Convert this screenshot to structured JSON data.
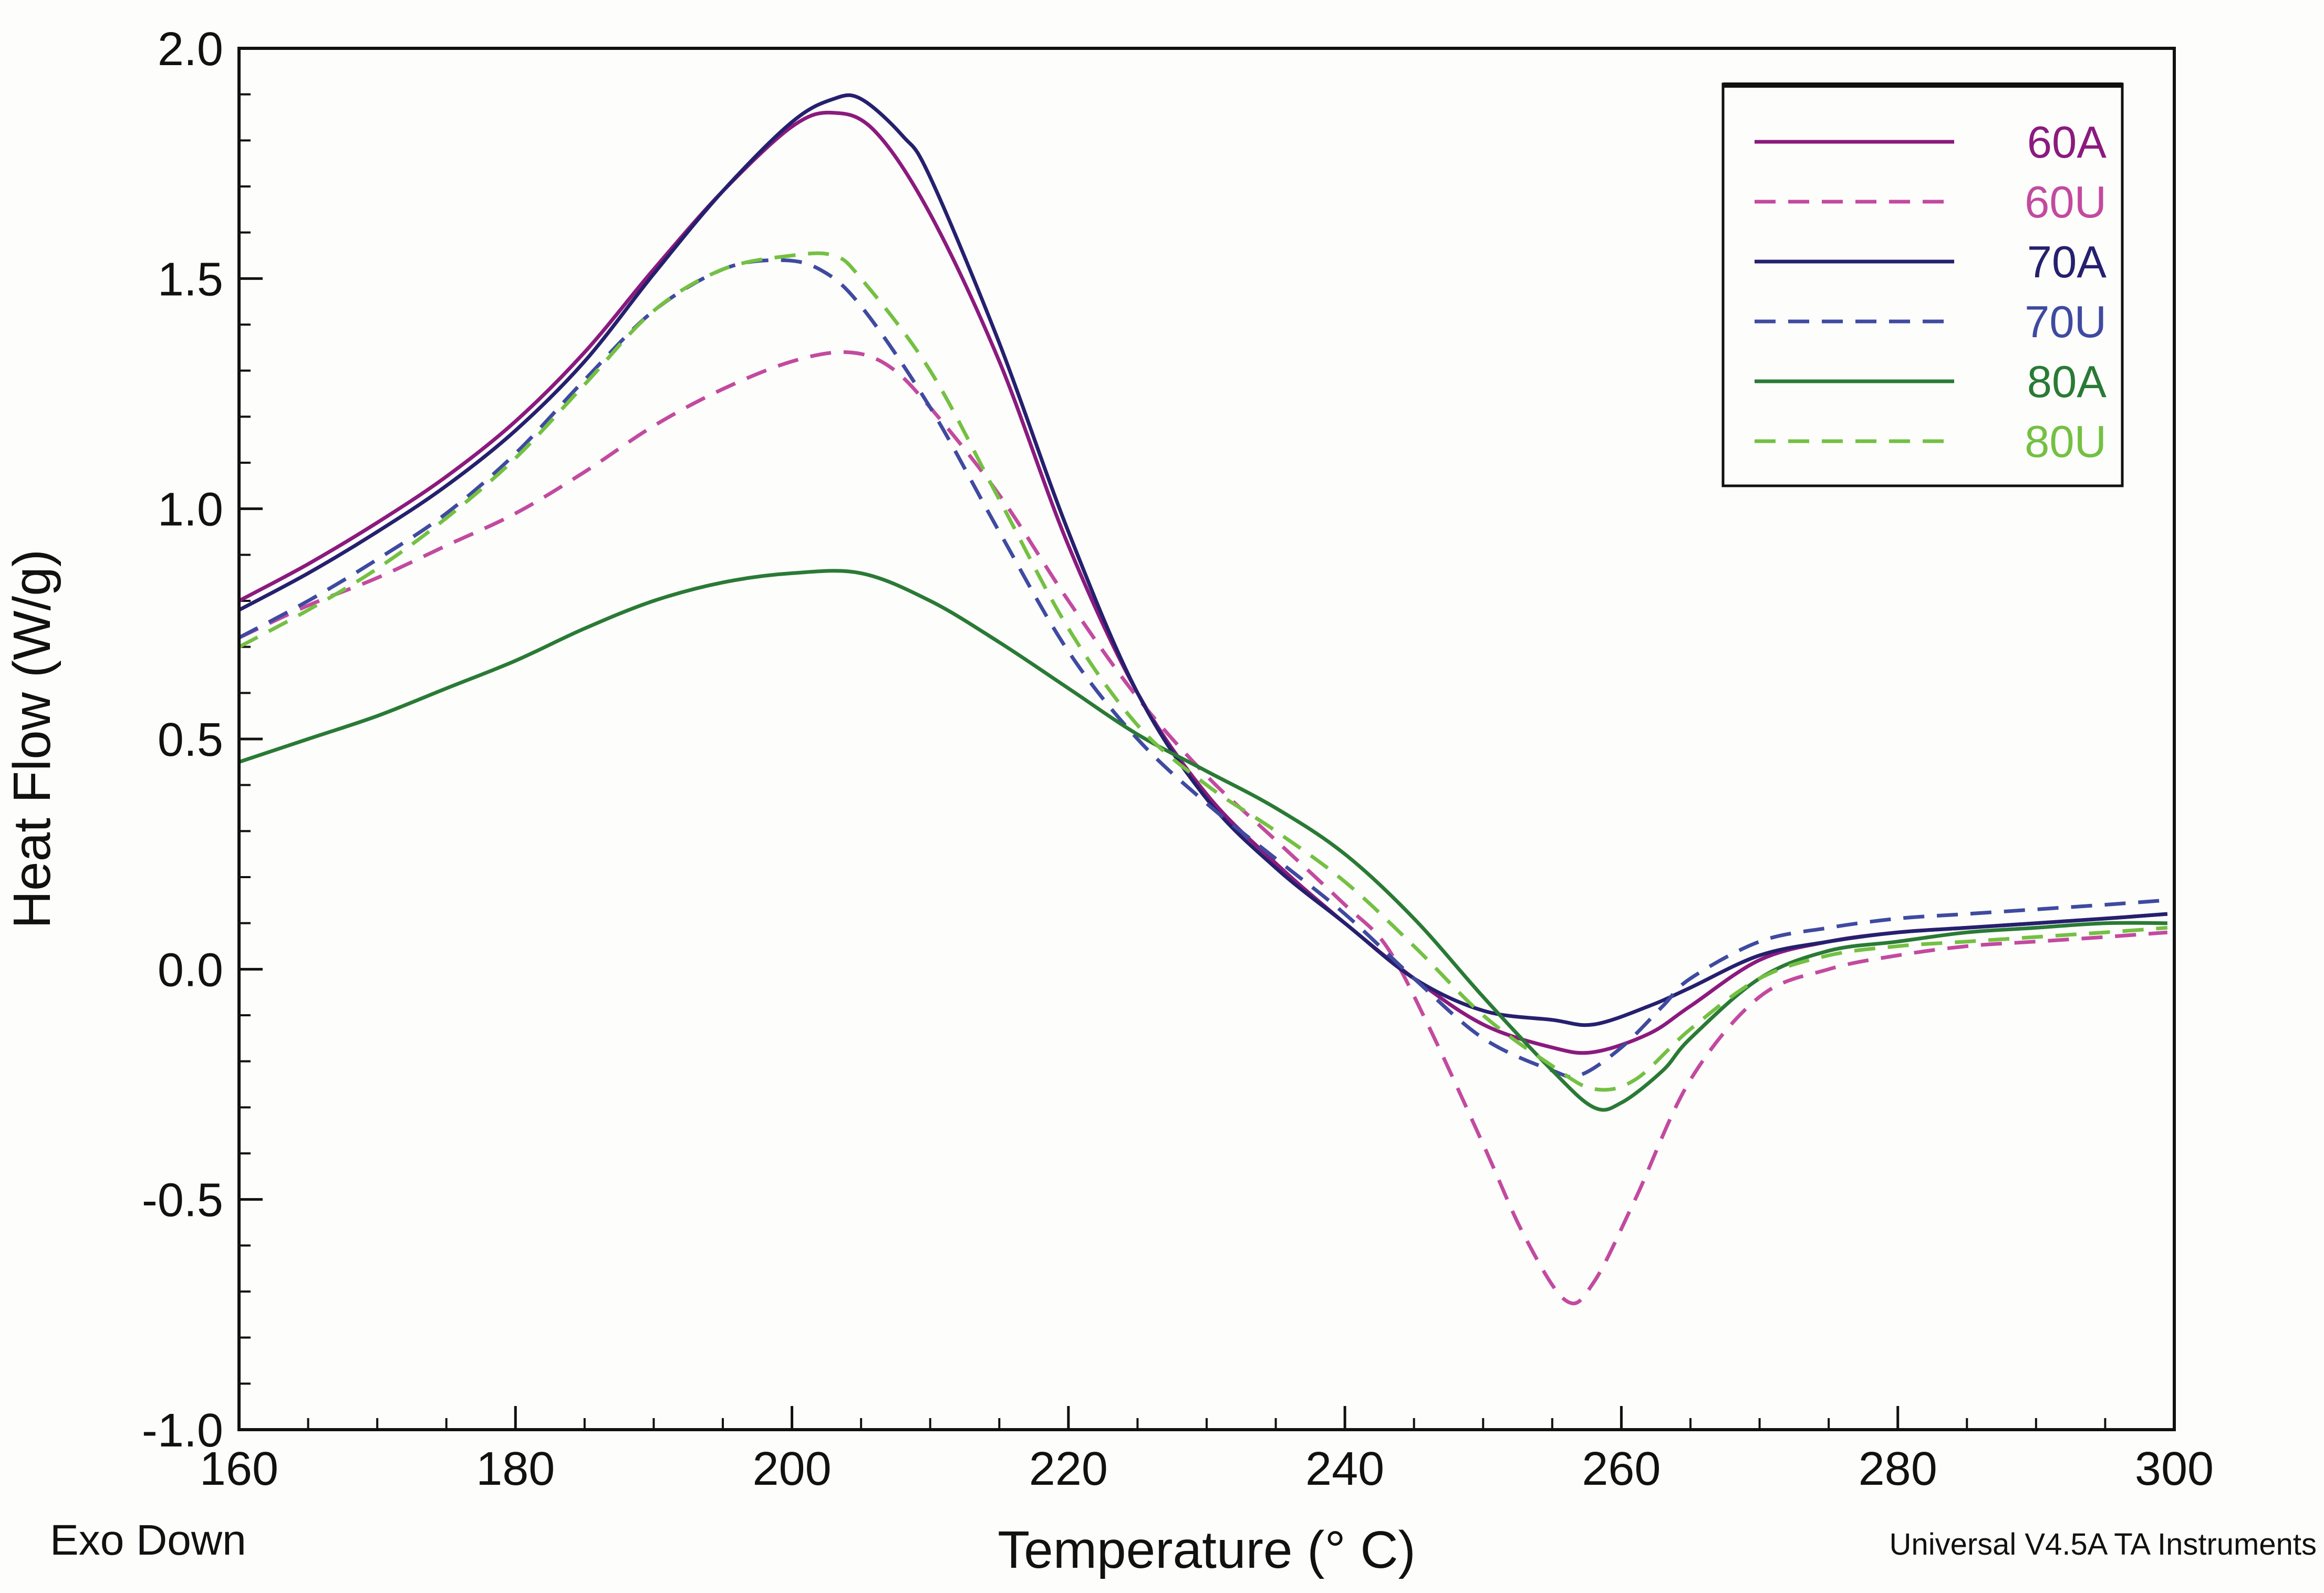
{
  "chart_data": {
    "type": "line",
    "xlabel": "Temperature (° C)",
    "ylabel": "Heat Flow (W/g)",
    "xlim": [
      160,
      300
    ],
    "ylim": [
      -1.0,
      2.0
    ],
    "xticks": [
      "160",
      "180",
      "200",
      "220",
      "240",
      "260",
      "280",
      "300"
    ],
    "yticks": [
      "-1.0",
      "-0.5",
      "0.0",
      "0.5",
      "1.0",
      "1.5",
      "2.0"
    ],
    "x_minor_step": 5,
    "y_minor_step": 0.1,
    "bottom_left_note": "Exo Down",
    "bottom_right_note": "Universal V4.5A TA Instruments",
    "legend_position": "top-right",
    "series": [
      {
        "name": "60A",
        "color": "#8b1a7e",
        "dash": "solid",
        "points": [
          [
            160,
            0.8
          ],
          [
            165,
            0.88
          ],
          [
            170,
            0.97
          ],
          [
            175,
            1.07
          ],
          [
            180,
            1.19
          ],
          [
            185,
            1.34
          ],
          [
            190,
            1.52
          ],
          [
            195,
            1.69
          ],
          [
            200,
            1.83
          ],
          [
            203,
            1.86
          ],
          [
            206,
            1.82
          ],
          [
            210,
            1.64
          ],
          [
            215,
            1.32
          ],
          [
            220,
            0.92
          ],
          [
            225,
            0.6
          ],
          [
            230,
            0.38
          ],
          [
            235,
            0.23
          ],
          [
            240,
            0.1
          ],
          [
            245,
            -0.02
          ],
          [
            250,
            -0.12
          ],
          [
            255,
            -0.17
          ],
          [
            258,
            -0.18
          ],
          [
            262,
            -0.14
          ],
          [
            265,
            -0.08
          ],
          [
            270,
            0.02
          ],
          [
            275,
            0.06
          ],
          [
            280,
            0.08
          ],
          [
            285,
            0.09
          ],
          [
            290,
            0.1
          ],
          [
            295,
            0.11
          ],
          [
            299.5,
            0.12
          ]
        ]
      },
      {
        "name": "60U",
        "color": "#c24a9f",
        "dash": "dashed",
        "points": [
          [
            160,
            0.72
          ],
          [
            165,
            0.79
          ],
          [
            170,
            0.85
          ],
          [
            175,
            0.92
          ],
          [
            180,
            0.99
          ],
          [
            185,
            1.08
          ],
          [
            190,
            1.18
          ],
          [
            195,
            1.26
          ],
          [
            200,
            1.32
          ],
          [
            204,
            1.34
          ],
          [
            207,
            1.31
          ],
          [
            210,
            1.22
          ],
          [
            215,
            1.03
          ],
          [
            220,
            0.8
          ],
          [
            225,
            0.59
          ],
          [
            230,
            0.42
          ],
          [
            235,
            0.28
          ],
          [
            240,
            0.14
          ],
          [
            243,
            0.05
          ],
          [
            246,
            -0.12
          ],
          [
            250,
            -0.38
          ],
          [
            253,
            -0.58
          ],
          [
            256,
            -0.72
          ],
          [
            258,
            -0.68
          ],
          [
            261,
            -0.5
          ],
          [
            265,
            -0.24
          ],
          [
            270,
            -0.06
          ],
          [
            275,
            0.0
          ],
          [
            280,
            0.03
          ],
          [
            285,
            0.05
          ],
          [
            290,
            0.06
          ],
          [
            295,
            0.07
          ],
          [
            299.5,
            0.08
          ]
        ]
      },
      {
        "name": "70A",
        "color": "#25206e",
        "dash": "solid",
        "points": [
          [
            160,
            0.78
          ],
          [
            165,
            0.86
          ],
          [
            170,
            0.95
          ],
          [
            175,
            1.05
          ],
          [
            180,
            1.17
          ],
          [
            185,
            1.32
          ],
          [
            190,
            1.51
          ],
          [
            195,
            1.69
          ],
          [
            200,
            1.84
          ],
          [
            203,
            1.89
          ],
          [
            205,
            1.89
          ],
          [
            208,
            1.81
          ],
          [
            210,
            1.72
          ],
          [
            215,
            1.36
          ],
          [
            220,
            0.95
          ],
          [
            225,
            0.6
          ],
          [
            230,
            0.37
          ],
          [
            235,
            0.22
          ],
          [
            240,
            0.1
          ],
          [
            245,
            -0.02
          ],
          [
            250,
            -0.09
          ],
          [
            255,
            -0.11
          ],
          [
            258,
            -0.12
          ],
          [
            262,
            -0.08
          ],
          [
            265,
            -0.04
          ],
          [
            270,
            0.03
          ],
          [
            275,
            0.06
          ],
          [
            280,
            0.08
          ],
          [
            285,
            0.09
          ],
          [
            290,
            0.1
          ],
          [
            295,
            0.11
          ],
          [
            299.5,
            0.12
          ]
        ]
      },
      {
        "name": "70U",
        "color": "#3f4aa0",
        "dash": "dashed",
        "points": [
          [
            160,
            0.72
          ],
          [
            165,
            0.8
          ],
          [
            170,
            0.89
          ],
          [
            175,
            0.99
          ],
          [
            180,
            1.12
          ],
          [
            185,
            1.28
          ],
          [
            190,
            1.43
          ],
          [
            195,
            1.52
          ],
          [
            199,
            1.54
          ],
          [
            202,
            1.52
          ],
          [
            205,
            1.44
          ],
          [
            210,
            1.22
          ],
          [
            215,
            0.95
          ],
          [
            220,
            0.69
          ],
          [
            225,
            0.5
          ],
          [
            230,
            0.36
          ],
          [
            235,
            0.24
          ],
          [
            240,
            0.12
          ],
          [
            245,
            -0.02
          ],
          [
            250,
            -0.15
          ],
          [
            255,
            -0.22
          ],
          [
            257,
            -0.23
          ],
          [
            260,
            -0.17
          ],
          [
            263,
            -0.08
          ],
          [
            265,
            -0.02
          ],
          [
            270,
            0.06
          ],
          [
            275,
            0.09
          ],
          [
            280,
            0.11
          ],
          [
            285,
            0.12
          ],
          [
            290,
            0.13
          ],
          [
            295,
            0.14
          ],
          [
            299.5,
            0.15
          ]
        ]
      },
      {
        "name": "80A",
        "color": "#2a7a35",
        "dash": "solid",
        "points": [
          [
            160,
            0.45
          ],
          [
            165,
            0.5
          ],
          [
            170,
            0.55
          ],
          [
            175,
            0.61
          ],
          [
            180,
            0.67
          ],
          [
            185,
            0.74
          ],
          [
            190,
            0.8
          ],
          [
            195,
            0.84
          ],
          [
            200,
            0.86
          ],
          [
            205,
            0.86
          ],
          [
            210,
            0.8
          ],
          [
            215,
            0.71
          ],
          [
            220,
            0.61
          ],
          [
            225,
            0.51
          ],
          [
            230,
            0.43
          ],
          [
            235,
            0.35
          ],
          [
            240,
            0.25
          ],
          [
            245,
            0.11
          ],
          [
            250,
            -0.06
          ],
          [
            255,
            -0.22
          ],
          [
            258,
            -0.3
          ],
          [
            260,
            -0.29
          ],
          [
            263,
            -0.22
          ],
          [
            265,
            -0.15
          ],
          [
            270,
            -0.02
          ],
          [
            275,
            0.04
          ],
          [
            280,
            0.06
          ],
          [
            285,
            0.08
          ],
          [
            290,
            0.09
          ],
          [
            295,
            0.1
          ],
          [
            299.5,
            0.1
          ]
        ]
      },
      {
        "name": "80U",
        "color": "#74c043",
        "dash": "dashed",
        "points": [
          [
            160,
            0.7
          ],
          [
            165,
            0.78
          ],
          [
            170,
            0.87
          ],
          [
            175,
            0.98
          ],
          [
            180,
            1.11
          ],
          [
            185,
            1.27
          ],
          [
            190,
            1.43
          ],
          [
            195,
            1.52
          ],
          [
            200,
            1.55
          ],
          [
            203,
            1.55
          ],
          [
            205,
            1.5
          ],
          [
            210,
            1.3
          ],
          [
            215,
            1.02
          ],
          [
            220,
            0.74
          ],
          [
            225,
            0.53
          ],
          [
            230,
            0.4
          ],
          [
            235,
            0.3
          ],
          [
            240,
            0.19
          ],
          [
            245,
            0.05
          ],
          [
            250,
            -0.1
          ],
          [
            255,
            -0.21
          ],
          [
            258,
            -0.26
          ],
          [
            261,
            -0.24
          ],
          [
            265,
            -0.13
          ],
          [
            270,
            -0.02
          ],
          [
            275,
            0.03
          ],
          [
            280,
            0.05
          ],
          [
            285,
            0.06
          ],
          [
            290,
            0.07
          ],
          [
            295,
            0.08
          ],
          [
            299.5,
            0.09
          ]
        ]
      }
    ]
  }
}
